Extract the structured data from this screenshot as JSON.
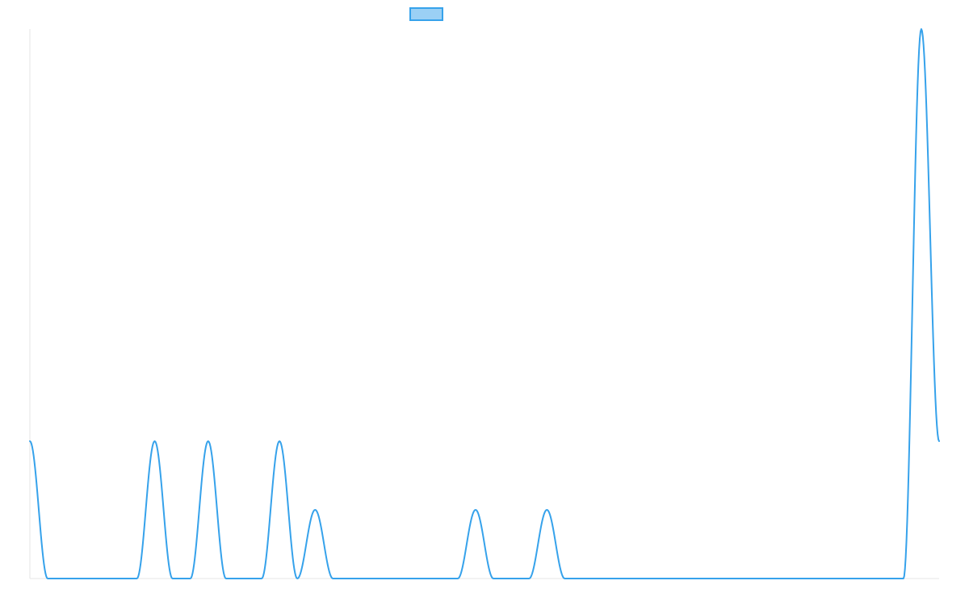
{
  "chart_data": {
    "type": "line",
    "title": "",
    "xlabel": "",
    "ylabel": "",
    "legend": {
      "position": "top-center",
      "entries": [
        {
          "label": "",
          "swatch_fill": "#9BD0F5",
          "swatch_stroke": "#36A2EB"
        }
      ]
    },
    "grid": false,
    "xlim": [
      0,
      51
    ],
    "ylim": [
      0,
      8
    ],
    "series": [
      {
        "color": "#36A2EB",
        "x": [
          0,
          1,
          2,
          3,
          4,
          5,
          6,
          7,
          8,
          9,
          10,
          11,
          12,
          13,
          14,
          15,
          16,
          17,
          18,
          19,
          20,
          21,
          22,
          23,
          24,
          25,
          26,
          27,
          28,
          29,
          30,
          31,
          32,
          33,
          34,
          35,
          36,
          37,
          38,
          39,
          40,
          41,
          42,
          43,
          44,
          45,
          46,
          47,
          48,
          49,
          50,
          51
        ],
        "values": [
          2,
          0,
          0,
          0,
          0,
          0,
          0,
          2,
          0,
          0,
          2,
          0,
          0,
          0,
          2,
          0,
          1,
          0,
          0,
          0,
          0,
          0,
          0,
          0,
          0,
          1,
          0,
          0,
          0,
          1,
          0,
          0,
          0,
          0,
          0,
          0,
          0,
          0,
          0,
          0,
          0,
          0,
          0,
          0,
          0,
          0,
          0,
          0,
          0,
          0,
          8,
          2
        ]
      }
    ]
  }
}
